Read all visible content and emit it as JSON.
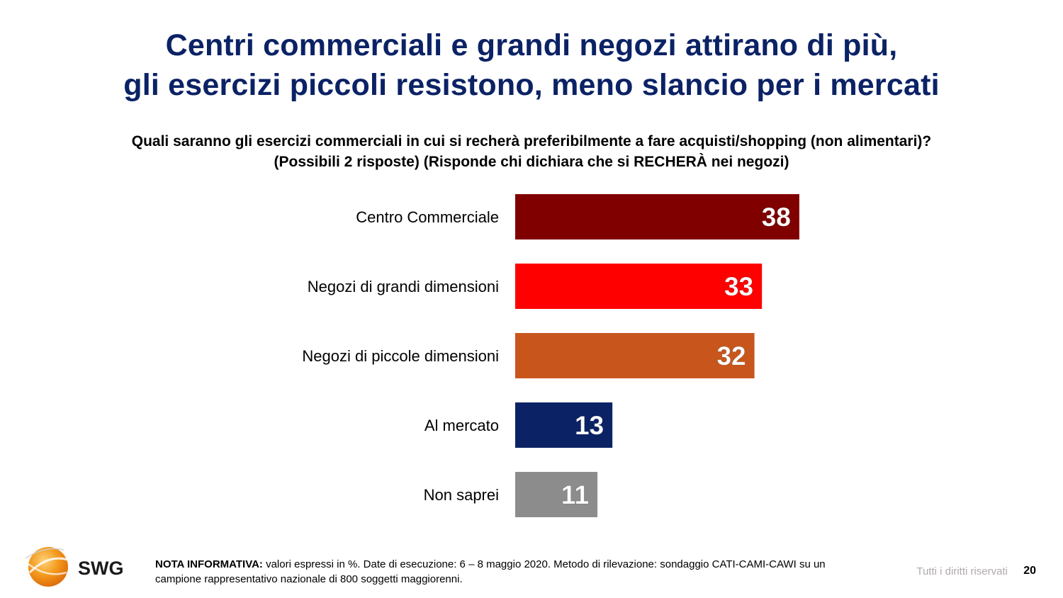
{
  "slide": {
    "title_line1": "Centri commerciali e grandi negozi attirano di più,",
    "title_line2": "gli esercizi piccoli resistono, meno slancio per i mercati",
    "question_line1": "Quali saranno gli esercizi commerciali in cui si recherà preferibilmente a fare acquisti/shopping (non alimentari)?",
    "question_line2": "(Possibili 2 risposte) (Risponde chi dichiara che si RECHERÀ nei negozi)"
  },
  "chart_data": {
    "type": "bar",
    "orientation": "horizontal",
    "categories": [
      "Centro Commerciale",
      "Negozi di grandi dimensioni",
      "Negozi di piccole dimensioni",
      "Al mercato",
      "Non saprei"
    ],
    "values": [
      38,
      33,
      32,
      13,
      11
    ],
    "colors": [
      "#800000",
      "#ff0000",
      "#c8561c",
      "#0b2265",
      "#8c8c8c"
    ],
    "value_labels": [
      "38",
      "33",
      "32",
      "13",
      "11"
    ],
    "xlim": [
      0,
      100
    ],
    "grid": false,
    "legend": "none"
  },
  "footer": {
    "logo_text": "SWG",
    "note_label": "NOTA INFORMATIVA:",
    "note_text": " valori espressi in %. Date di esecuzione: 6 – 8 maggio 2020. Metodo di rilevazione: sondaggio CATI-CAMI-CAWI su un campione rappresentativo nazionale di 800 soggetti maggiorenni.",
    "rights": "Tutti i diritti riservati",
    "page_number": "20"
  }
}
